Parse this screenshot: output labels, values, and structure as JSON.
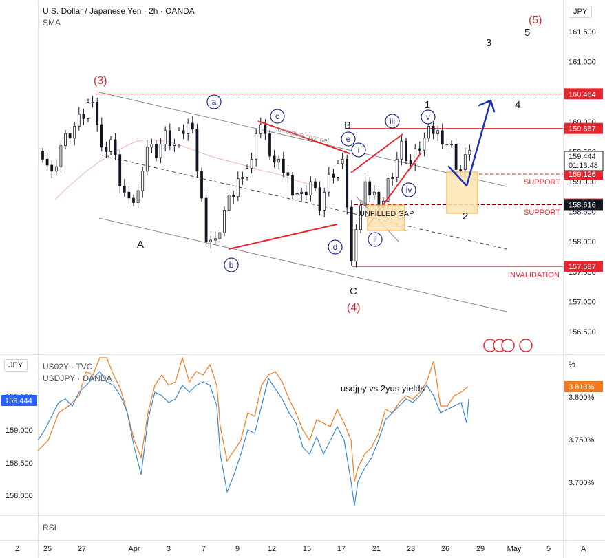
{
  "header": {
    "symbol_title": "U.S. Dollar / Japanese Yen · 2h · OANDA",
    "indicator": "SMA",
    "currency": "JPY"
  },
  "lower_pane": {
    "currency": "JPY",
    "unit": "%",
    "legend_1": "US02Y · TVC",
    "legend_2": "USDJPY · OANDA",
    "annotation": "usdjpy vs 2yus yields",
    "left_axis_ticks": [
      "159.500",
      "159.000",
      "158.500",
      "158.000"
    ],
    "right_axis_ticks": [
      "3.800%",
      "3.750%",
      "3.700%"
    ],
    "last_price_badge": "159.444",
    "last_yield_badge": "3.813%"
  },
  "rsi_pane": {
    "label": "RSI"
  },
  "bottom_bar": {
    "left_button": "Z",
    "right_button": "A"
  },
  "colors": {
    "up_candle": "#131722",
    "red": "#e5262f",
    "navy": "#1f2a8c",
    "arrow_blue": "#1c2fb7",
    "grey_line": "#888888",
    "orange_series": "#f07a1d",
    "blue_series": "#3b86d8",
    "zone_fill": "#fde3b0",
    "zone_border": "#f2a93b"
  },
  "chart_data": {
    "type": "line",
    "title": "U.S. Dollar / Japanese Yen · 2h · OANDA",
    "x_ticks": [
      "25",
      "27",
      "Apr",
      "3",
      "7",
      "9",
      "12",
      "15",
      "17",
      "21",
      "23",
      "26",
      "29",
      "May",
      "5"
    ],
    "y_ticks": [
      "161.500",
      "161.000",
      "160.500",
      "160.000",
      "159.500",
      "159.000",
      "158.500",
      "158.000",
      "157.500",
      "157.000",
      "156.500"
    ],
    "ylim": [
      156.3,
      161.9
    ],
    "price_path": [
      [
        0,
        159.5
      ],
      [
        2,
        159.1
      ],
      [
        4,
        159.6
      ],
      [
        7,
        159.9
      ],
      [
        9,
        160.1
      ],
      [
        11,
        160.45
      ],
      [
        13,
        159.5
      ],
      [
        15,
        159.7
      ],
      [
        17,
        159.0
      ],
      [
        19,
        158.6
      ],
      [
        21,
        158.8
      ],
      [
        22,
        159.3
      ],
      [
        23,
        159.6
      ],
      [
        25,
        159.5
      ],
      [
        27,
        159.75
      ],
      [
        29,
        159.6
      ],
      [
        31,
        159.85
      ],
      [
        33,
        160.0
      ],
      [
        34,
        159.2
      ],
      [
        36,
        158.1
      ],
      [
        38,
        157.95
      ],
      [
        40,
        158.5
      ],
      [
        42,
        158.8
      ],
      [
        44,
        159.2
      ],
      [
        46,
        159.3
      ],
      [
        47,
        159.9
      ],
      [
        48,
        159.95
      ],
      [
        49,
        159.7
      ],
      [
        51,
        159.3
      ],
      [
        53,
        159.2
      ],
      [
        55,
        158.9
      ],
      [
        57,
        158.75
      ],
      [
        59,
        159.0
      ],
      [
        61,
        158.6
      ],
      [
        63,
        159.0
      ],
      [
        65,
        159.25
      ],
      [
        66,
        159.5
      ],
      [
        67,
        158.6
      ],
      [
        68,
        157.6
      ],
      [
        69,
        158.3
      ],
      [
        71,
        158.9
      ],
      [
        73,
        158.8
      ],
      [
        74,
        158.45
      ],
      [
        76,
        159.0
      ],
      [
        78,
        159.4
      ],
      [
        79,
        159.6
      ],
      [
        81,
        159.3
      ],
      [
        83,
        159.6
      ],
      [
        85,
        159.8
      ],
      [
        86,
        159.85
      ],
      [
        88,
        159.75
      ],
      [
        90,
        159.55
      ],
      [
        91,
        159.3
      ],
      [
        92,
        159.2
      ],
      [
        93,
        159.35
      ],
      [
        94,
        159.6
      ]
    ],
    "levels": [
      {
        "label": "160.464",
        "value": 160.464
      },
      {
        "label": "159.887",
        "value": 159.887
      },
      {
        "label": "159.126",
        "value": 159.126,
        "tag": "SUPPORT"
      },
      {
        "label": "158.627",
        "value": 158.627,
        "tag": "SUPPORT"
      },
      {
        "label": "158.616",
        "value": 158.616
      },
      {
        "label": "157.587",
        "value": 157.587,
        "tag": "INVALIDATION"
      }
    ],
    "last_price": "159.444",
    "countdown": "01:13:48",
    "annotations": {
      "wave_3": "(3)",
      "wave_4": "(4)",
      "wave_5": "(5)",
      "A": "A",
      "B": "B",
      "C": "C",
      "a": "a",
      "b": "b",
      "c": "c",
      "d": "d",
      "e": "e",
      "i": "i",
      "ii": "ii",
      "iii": "iii",
      "iv": "iv",
      "v": "v",
      "n1": "1",
      "n2": "2",
      "n3": "3",
      "n4": "4",
      "n5": "5",
      "channel": "corrective channel",
      "gap": "UNFILLED GAP",
      "support_1": "SUPPORT",
      "support_2": "SUPPORT",
      "invalidation": "INVALIDATION"
    }
  }
}
